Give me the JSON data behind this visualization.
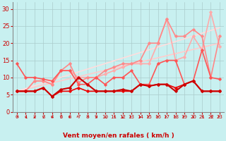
{
  "xlabel": "Vent moyen/en rafales ( km/h )",
  "bg_color": "#c8f0f0",
  "grid_color": "#aacccc",
  "xlim": [
    -0.5,
    23.5
  ],
  "ylim": [
    0,
    32
  ],
  "yticks": [
    0,
    5,
    10,
    15,
    20,
    25,
    30
  ],
  "xticks": [
    0,
    1,
    2,
    3,
    4,
    5,
    6,
    7,
    8,
    9,
    10,
    11,
    12,
    13,
    14,
    15,
    16,
    17,
    18,
    19,
    20,
    21,
    22,
    23
  ],
  "series": [
    {
      "x": [
        0,
        1,
        2,
        3,
        4,
        5,
        6,
        7,
        8,
        9,
        10,
        11,
        12,
        13,
        14,
        15,
        16,
        17,
        18,
        19,
        20,
        21,
        22,
        23
      ],
      "y": [
        6,
        6,
        6,
        7,
        4.5,
        6,
        6,
        7,
        6,
        6,
        6,
        6,
        6,
        6,
        8,
        7.5,
        8,
        8,
        7,
        8,
        9,
        6,
        6,
        6
      ],
      "color": "#ee0000",
      "lw": 1.2,
      "marker": "D",
      "ms": 1.8,
      "zorder": 5
    },
    {
      "x": [
        0,
        1,
        2,
        3,
        4,
        5,
        6,
        7,
        8,
        9,
        10,
        11,
        12,
        13,
        14,
        15,
        16,
        17,
        18,
        19,
        20,
        21,
        22,
        23
      ],
      "y": [
        6,
        6,
        6,
        7,
        4.5,
        6.5,
        7,
        10,
        8,
        6,
        6,
        6,
        6.5,
        6,
        8,
        7.5,
        8,
        8,
        6,
        8,
        9,
        6,
        6,
        6
      ],
      "color": "#cc0000",
      "lw": 1.5,
      "marker": "D",
      "ms": 1.8,
      "zorder": 6
    },
    {
      "x": [
        0,
        1,
        2,
        3,
        4,
        5,
        6,
        7,
        8,
        9,
        10,
        11,
        12,
        13,
        14,
        15,
        16,
        17,
        18,
        19,
        20,
        21,
        22,
        23
      ],
      "y": [
        14,
        10,
        10,
        9.5,
        9,
        12,
        12,
        8,
        8,
        10,
        8,
        10,
        10,
        12,
        8,
        8,
        14,
        15,
        15,
        8,
        9,
        18,
        10,
        9.5
      ],
      "color": "#ff5555",
      "lw": 1.2,
      "marker": "D",
      "ms": 1.8,
      "zorder": 4
    },
    {
      "x": [
        0,
        1,
        2,
        3,
        4,
        5,
        6,
        7,
        8,
        9,
        10,
        11,
        12,
        13,
        14,
        15,
        16,
        17,
        18,
        19,
        20,
        21,
        22,
        23
      ],
      "y": [
        6,
        6,
        9,
        9,
        8,
        12,
        12,
        10,
        10,
        10,
        11,
        12,
        13,
        14,
        14,
        14,
        20,
        27,
        15,
        16,
        22,
        18,
        29,
        19
      ],
      "color": "#ffaaaa",
      "lw": 1.2,
      "marker": "D",
      "ms": 1.8,
      "zorder": 3
    },
    {
      "x": [
        0,
        1,
        2,
        3,
        4,
        5,
        6,
        7,
        8,
        9,
        10,
        11,
        12,
        13,
        14,
        15,
        16,
        17,
        18,
        19,
        20,
        21,
        22,
        23
      ],
      "y": [
        6,
        6,
        9,
        9,
        8,
        12,
        14,
        8.5,
        10,
        10,
        12,
        13,
        14,
        14,
        15,
        20,
        20,
        27,
        22,
        22,
        24,
        22,
        10,
        22
      ],
      "color": "#ff8888",
      "lw": 1.2,
      "marker": "D",
      "ms": 1.8,
      "zorder": 3
    },
    {
      "x": [
        0,
        23
      ],
      "y": [
        6,
        20
      ],
      "color": "#ffcccc",
      "lw": 1.2,
      "marker": null,
      "ms": 0,
      "zorder": 2
    },
    {
      "x": [
        0,
        23
      ],
      "y": [
        6,
        24.5
      ],
      "color": "#ffdddd",
      "lw": 1.2,
      "marker": null,
      "ms": 0,
      "zorder": 2
    }
  ],
  "wind_dirs": [
    225,
    270,
    270,
    180,
    180,
    180,
    90,
    135,
    225,
    270,
    315,
    225,
    180,
    135,
    90,
    135,
    135,
    135,
    135,
    135,
    180,
    225,
    225,
    135
  ],
  "wind_arrow_color": "#cc0000"
}
